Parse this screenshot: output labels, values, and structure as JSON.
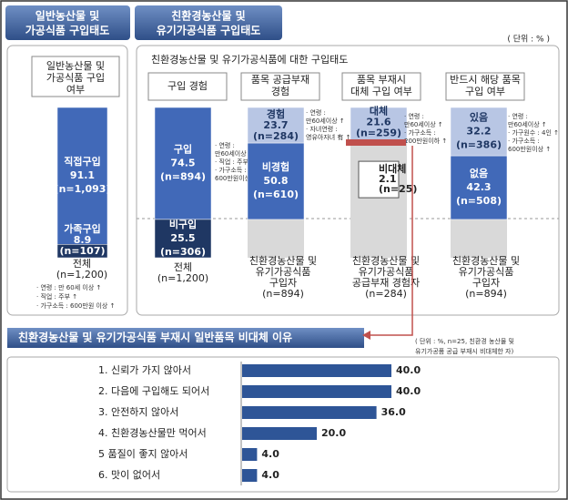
{
  "tabs": [
    [
      "일반농산물 및",
      "가공식품  구입태도"
    ],
    [
      "친환경농산물 및",
      "유기가공식품  구입태도"
    ]
  ],
  "unit": "( 단위 : % )",
  "left": {
    "title": [
      "일반농산물 및",
      "가공식품 구입",
      "여부"
    ],
    "segments": [
      {
        "name": "직접구입",
        "value": 91.1,
        "n": "(n=1,093)",
        "color": "#4169b8"
      },
      {
        "name": "가족구입",
        "value": 8.9,
        "n": "(n=107)",
        "color": "#1f3763"
      }
    ],
    "footer": [
      "전체",
      "(n=1,200)"
    ],
    "notes": [
      "· 연령 : 만 60세 이상 ↑",
      "· 직업 : 주부 ↑",
      "· 가구소득 : 600만원 이상 ↑"
    ]
  },
  "right": {
    "title": "친환경농산물 및 유기가공식품에 대한 구입태도",
    "columns": [
      {
        "header": [
          "구입 경험"
        ],
        "segments": [
          {
            "name": "구입",
            "value": 74.5,
            "n": "(n=894)",
            "color": "#4169b8"
          },
          {
            "name": "비구입",
            "value": 25.5,
            "n": "(n=306)",
            "color": "#1f3763"
          }
        ],
        "footer": [
          "전체",
          "(n=1,200)"
        ],
        "notes": [
          "· 연령 :",
          "만60세이상 ↑",
          "· 직업 : 주부 ↑",
          "· 가구소득 :",
          "600만원이상 ↑"
        ]
      },
      {
        "header": [
          "품목 공급부재",
          "경험"
        ],
        "segments": [
          {
            "name": "경험",
            "value": 23.7,
            "n": "(n=284)",
            "color": "#b8c6e4"
          },
          {
            "name": "비경험",
            "value": 50.8,
            "n": "(n=610)",
            "color": "#4169b8"
          }
        ],
        "footer": [
          "친환경농산물 및",
          "유기가공식품",
          "구입자",
          "(n=894)"
        ],
        "notes": [
          "· 연령 :",
          "만60세이상 ↑",
          "· 자녀연령 :",
          "영유아자녀 有 ↑"
        ]
      },
      {
        "header": [
          "품목 부재시",
          "대체 구입 여부"
        ],
        "segments": [
          {
            "name": "대체",
            "value": 21.6,
            "n": "(n=259)",
            "color": "#b8c6e4"
          },
          {
            "name": "비대체",
            "value": 2.1,
            "n": "(n=25)",
            "color": "#4169b8"
          }
        ],
        "footer": [
          "친환경농산물 및",
          "유기가공식품",
          "공급부재 경험자",
          "(n=284)"
        ],
        "notes": [
          "· 연령 :",
          "만60세이상 ↑",
          "· 가구소득 :",
          "200만원이하 ↑"
        ]
      },
      {
        "header": [
          "반드시 해당 품목",
          "구입 여부"
        ],
        "segments": [
          {
            "name": "있음",
            "value": 32.2,
            "n": "(n=386)",
            "color": "#b8c6e4"
          },
          {
            "name": "없음",
            "value": 42.3,
            "n": "(n=508)",
            "color": "#4169b8"
          }
        ],
        "footer": [
          "친환경농산물 및",
          "유기가공식품",
          "구입자",
          "(n=894)"
        ],
        "notes": [
          "· 연령 :",
          "만60세이상 ↑",
          "· 가구원수 : 4인 ↑",
          "· 가구소득 :",
          "600만원이상 ↑"
        ]
      }
    ]
  },
  "reasons": {
    "title": "친환경농산물 및 유기가공식품 부재시 일반품목 비대체 이유",
    "note": [
      "( 단위 : %, n=25, 친환경 농산물 및",
      "유기가공품 공급 부재시 비대체한 자)"
    ],
    "categories": [
      "1. 신뢰가 가지 않아서",
      "2. 다음에 구입해도 되어서",
      "3. 안전하지 않아서",
      "4. 친환경농산물만 먹어서",
      "5 품질이 좋지 않아서",
      "6. 맛이 없어서"
    ],
    "values": [
      40.0,
      40.0,
      36.0,
      20.0,
      4.0,
      4.0
    ],
    "value_labels": [
      "40.0",
      "40.0",
      "36.0",
      "20.0",
      "4.0",
      "4.0"
    ],
    "color": "#2e5597"
  }
}
